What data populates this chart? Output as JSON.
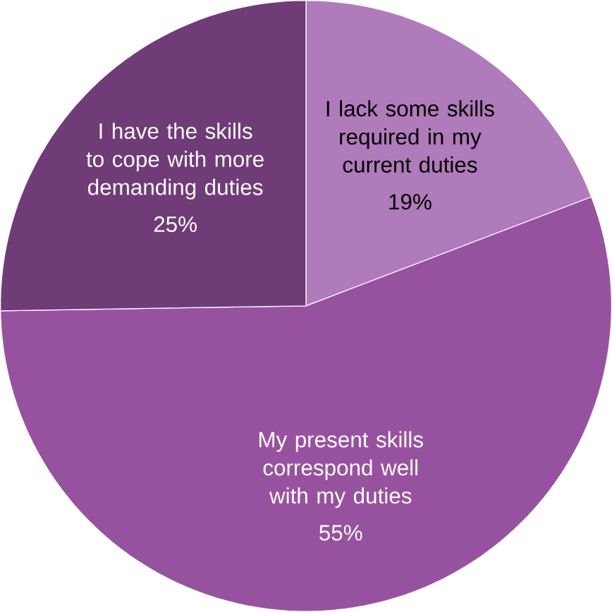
{
  "chart_data": {
    "type": "pie",
    "categories": [
      "I lack some skills required in my current duties",
      "My present skills correspond well with my duties",
      "I have the skills to cope with more demanding duties"
    ],
    "values": [
      19,
      55,
      25
    ],
    "colors": [
      "#b07bba",
      "#97529f",
      "#6f3c77"
    ],
    "value_labels": [
      "19%",
      "55%",
      "25%"
    ]
  }
}
